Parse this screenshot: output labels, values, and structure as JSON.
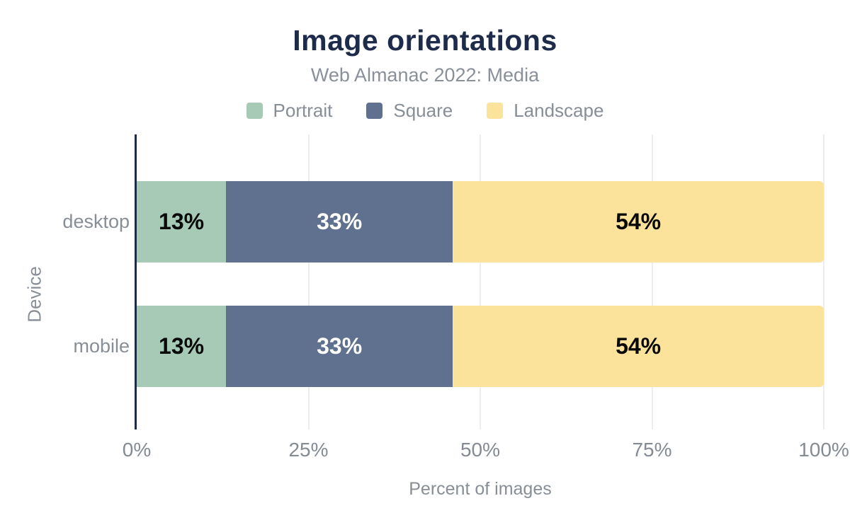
{
  "chart_data": {
    "type": "bar",
    "orientation": "horizontal",
    "stacked": true,
    "title": "Image orientations",
    "subtitle": "Web Almanac 2022: Media",
    "categories": [
      "desktop",
      "mobile"
    ],
    "series": [
      {
        "name": "Portrait",
        "color": "#a6cab5",
        "label_color": "#0a0a0a",
        "values": [
          13,
          13
        ]
      },
      {
        "name": "Square",
        "color": "#5f718e",
        "label_color": "#ffffff",
        "values": [
          33,
          33
        ]
      },
      {
        "name": "Landscape",
        "color": "#fce39b",
        "label_color": "#0a0a0a",
        "values": [
          54,
          54
        ]
      }
    ],
    "value_suffix": "%",
    "xlabel": "Percent of images",
    "ylabel": "Device",
    "x_ticks": [
      "0%",
      "25%",
      "50%",
      "75%",
      "100%"
    ],
    "x_tick_values": [
      0,
      25,
      50,
      75,
      100
    ],
    "xlim": [
      0,
      100
    ],
    "grid": "vertical-light",
    "legend_position": "top"
  },
  "colors": {
    "background": "#ffffff",
    "title_text": "#1e2b4a",
    "secondary_text": "#878e96",
    "gridline": "#ededed",
    "axis_line": "#1e2b4a"
  }
}
